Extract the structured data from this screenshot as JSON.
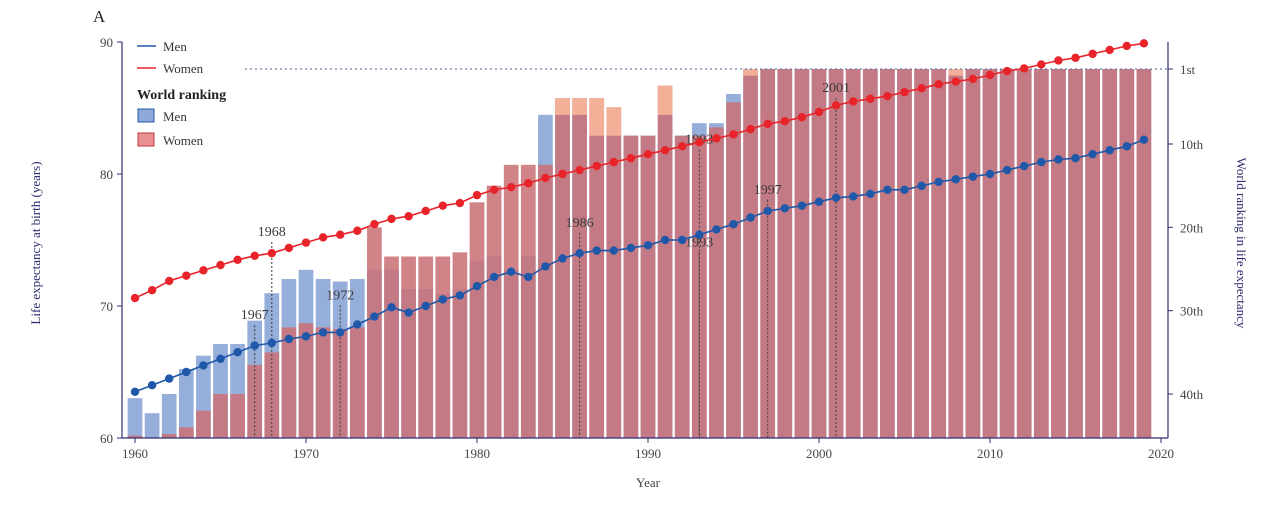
{
  "panel_label": "A",
  "chart_data": {
    "type": "bar",
    "x_axis": {
      "label": "Year",
      "ticks": [
        1960,
        1970,
        1980,
        1990,
        2000,
        2010,
        2020
      ],
      "range": [
        1960,
        2020
      ]
    },
    "y_left": {
      "label": "Life expectancy at birth (years)",
      "ticks": [
        60,
        70,
        80,
        90
      ],
      "range": [
        60,
        90
      ]
    },
    "y_right": {
      "label": "World ranking in life expectancy",
      "ticks": [
        "1st",
        "10th",
        "20th",
        "30th",
        "40th"
      ],
      "tick_values": [
        1,
        10,
        20,
        30,
        40
      ]
    },
    "legend": {
      "lines_men": "Men",
      "lines_women": "Women",
      "ranking_title": "World ranking",
      "ranking_men": "Men",
      "ranking_women": "Women"
    },
    "colors": {
      "men_line": "#1f58a8",
      "women_line": "#e8242a",
      "men_bar": "#8faad8",
      "women_bar": "#c97378",
      "women_bar_light": "#f5b59a",
      "axis": "#2e2e6e",
      "text": "#444444",
      "annotation": "#3b3b3b"
    },
    "years": [
      1960,
      1961,
      1962,
      1963,
      1964,
      1965,
      1966,
      1967,
      1968,
      1969,
      1970,
      1971,
      1972,
      1973,
      1974,
      1975,
      1976,
      1977,
      1978,
      1979,
      1980,
      1981,
      1982,
      1983,
      1984,
      1985,
      1986,
      1987,
      1988,
      1989,
      1990,
      1991,
      1992,
      1993,
      1994,
      1995,
      1996,
      1997,
      1998,
      1999,
      2000,
      2001,
      2002,
      2003,
      2004,
      2005,
      2006,
      2007,
      2008,
      2009,
      2010,
      2011,
      2012,
      2013,
      2014,
      2015,
      2016,
      2017,
      2018,
      2019
    ],
    "series": [
      {
        "name": "Men life expectancy",
        "values": [
          63.5,
          64.0,
          64.5,
          65.0,
          65.5,
          66.0,
          66.5,
          67.0,
          67.2,
          67.5,
          67.7,
          68.0,
          68.0,
          68.6,
          69.2,
          69.9,
          69.5,
          70.0,
          70.5,
          70.8,
          71.5,
          72.2,
          72.6,
          72.2,
          73.0,
          73.6,
          74.0,
          74.2,
          74.2,
          74.4,
          74.6,
          75.0,
          75.0,
          75.4,
          75.8,
          76.2,
          76.7,
          77.2,
          77.4,
          77.6,
          77.9,
          78.2,
          78.3,
          78.5,
          78.8,
          78.8,
          79.1,
          79.4,
          79.6,
          79.8,
          80.0,
          80.3,
          80.6,
          80.9,
          81.1,
          81.2,
          81.5,
          81.8,
          82.1,
          82.6
        ]
      },
      {
        "name": "Women life expectancy",
        "values": [
          70.6,
          71.2,
          71.9,
          72.3,
          72.7,
          73.1,
          73.5,
          73.8,
          74.0,
          74.4,
          74.8,
          75.2,
          75.4,
          75.7,
          76.2,
          76.6,
          76.8,
          77.2,
          77.6,
          77.8,
          78.4,
          78.8,
          79.0,
          79.3,
          79.7,
          80.0,
          80.3,
          80.6,
          80.9,
          81.2,
          81.5,
          81.8,
          82.1,
          82.4,
          82.7,
          83.0,
          83.4,
          83.8,
          84.0,
          84.3,
          84.7,
          85.2,
          85.5,
          85.7,
          85.9,
          86.2,
          86.5,
          86.8,
          87.0,
          87.2,
          87.5,
          87.8,
          88.0,
          88.3,
          88.6,
          88.8,
          89.1,
          89.4,
          89.7,
          89.9
        ]
      },
      {
        "name": "Men world ranking",
        "values": [
          40.5,
          42.3,
          40.0,
          37.0,
          35.4,
          34.0,
          34.0,
          31.2,
          27.9,
          26.2,
          25.1,
          26.2,
          26.5,
          26.2,
          25.1,
          25.1,
          27.4,
          27.4,
          28.0,
          27.4,
          24.0,
          23.4,
          25.1,
          23.4,
          6.5,
          6.5,
          6.5,
          9.0,
          9.0,
          9.0,
          9.0,
          6.5,
          9.0,
          7.5,
          7.5,
          4.0,
          1.8,
          1.0,
          1.0,
          1.0,
          1.0,
          1.0,
          1.0,
          1.0,
          1.0,
          1.0,
          1.0,
          1.0,
          1.8,
          1.0,
          1.0,
          1.0,
          1.0,
          1.0,
          1.0,
          1.0,
          1.0,
          1.0,
          1.0,
          1.0
        ]
      },
      {
        "name": "Women world ranking",
        "values": [
          45.0,
          45.2,
          44.8,
          44.0,
          42.0,
          40.0,
          40.0,
          36.5,
          35.0,
          32.0,
          31.5,
          32.0,
          32.2,
          32.0,
          20.0,
          23.5,
          23.5,
          23.5,
          23.5,
          23.0,
          17.0,
          15.0,
          12.5,
          12.5,
          12.5,
          4.5,
          4.5,
          4.5,
          5.6,
          9.0,
          9.0,
          3.0,
          9.0,
          9.0,
          8.0,
          5.0,
          1.0,
          1.0,
          1.0,
          1.0,
          1.0,
          1.0,
          1.0,
          1.0,
          1.0,
          1.0,
          1.0,
          1.0,
          1.0,
          1.0,
          1.0,
          1.0,
          1.0,
          1.0,
          1.0,
          1.0,
          1.0,
          1.0,
          1.0,
          1.0
        ]
      }
    ],
    "annotations": [
      {
        "label": "1967",
        "year": 1967,
        "value": 69
      },
      {
        "label": "1968",
        "year": 1968,
        "value": 75.3
      },
      {
        "label": "1972",
        "year": 1972,
        "value": 70.5
      },
      {
        "label": "1986",
        "year": 1986,
        "value": 76
      },
      {
        "label": "1993",
        "year": 1993,
        "value": 82.3
      },
      {
        "label": "1993",
        "year": 1993,
        "value": 74.5
      },
      {
        "label": "1997",
        "year": 1997,
        "value": 78.5
      },
      {
        "label": "2001",
        "year": 2001,
        "value": 86.2
      }
    ]
  }
}
